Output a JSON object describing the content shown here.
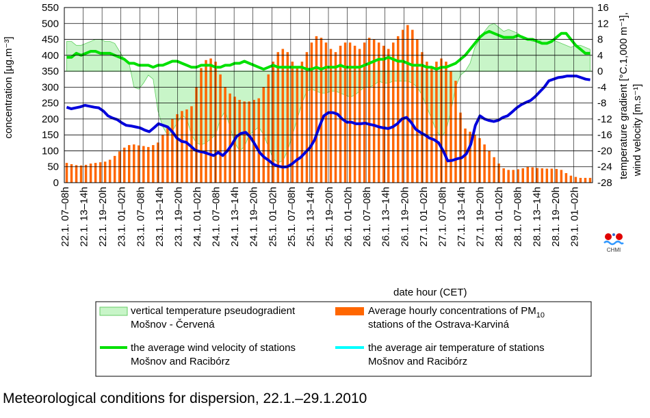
{
  "caption": "Meteorological conditions for dispersion, 22.1.–29.1.2010",
  "logo_text": "CHMI",
  "chart_data": {
    "type": "bar",
    "x_title": "date hour (CET)",
    "y_left_title": "concentration [µg.m⁻³]",
    "y_right_title_1": "temperature gradient [°C.1,000 m⁻¹],",
    "y_right_title_2": "wind velocity [m.s⁻¹]",
    "y_left": {
      "min": 0,
      "max": 550,
      "ticks": [
        "0",
        "50",
        "100",
        "150",
        "200",
        "250",
        "300",
        "350",
        "400",
        "450",
        "500",
        "550"
      ]
    },
    "y_right": {
      "min": -28,
      "max": 16,
      "ticks": [
        "-28",
        "-24",
        "-20",
        "-16",
        "-12",
        "-8",
        "-4",
        "0",
        "4",
        "8",
        "12",
        "16"
      ]
    },
    "x_ticks": [
      "22.1. 07–08h",
      "22.1. 13–14h",
      "22.1. 19–20h",
      "23.1. 01–02h",
      "23.1. 07–08h",
      "23.1. 13–14h",
      "23.1. 19–20h",
      "24.1. 01–02h",
      "24.1. 07–08h",
      "24.1. 13–14h",
      "24.1. 19–20h",
      "25.1. 01–02h",
      "25.1. 07–08h",
      "25.1. 13–14h",
      "25.1. 19–20h",
      "26.1. 01–02h",
      "26.1. 07–08h",
      "26.1. 13–14h",
      "26.1. 19–20h",
      "27.1. 01–02h",
      "27.1. 07–08h",
      "27.1. 13–14h",
      "27.1. 19–20h",
      "28.1. 01–02h",
      "28.1. 07–08h",
      "28.1. 13–14h",
      "28.1. 19–20h",
      "29.1. 01–02h"
    ],
    "legend": [
      {
        "label_1": "vertical temperature pseudogradient",
        "label_2": "Mošnov - Červená",
        "color": "#c8f5c8",
        "kind": "area"
      },
      {
        "label_1": "Average hourly concentrations of PM",
        "label_sub": "10",
        "label_2": "stations of the Ostrava-Karviná",
        "color": "#ff6600",
        "kind": "bar"
      },
      {
        "label_1": "the average wind velocity of stations",
        "label_2": "Mošnov and Racibórz",
        "color": "#00e000",
        "kind": "line"
      },
      {
        "label_1": "the average air temperature of stations",
        "label_2": "Mošnov and Racibórz",
        "color": "#00ffff",
        "kind": "line"
      }
    ],
    "pm10_concentration": [
      62,
      58,
      55,
      54,
      56,
      60,
      62,
      64,
      66,
      72,
      84,
      98,
      110,
      118,
      120,
      117,
      115,
      112,
      118,
      126,
      150,
      175,
      200,
      215,
      225,
      230,
      240,
      300,
      360,
      385,
      390,
      380,
      340,
      300,
      280,
      270,
      260,
      255,
      255,
      260,
      265,
      300,
      340,
      380,
      410,
      420,
      410,
      380,
      360,
      380,
      410,
      440,
      460,
      455,
      440,
      420,
      410,
      430,
      440,
      440,
      430,
      420,
      440,
      455,
      450,
      440,
      430,
      420,
      440,
      460,
      480,
      495,
      480,
      450,
      410,
      380,
      360,
      380,
      390,
      380,
      350,
      320,
      220,
      170,
      160,
      150,
      140,
      120,
      100,
      80,
      60,
      45,
      40,
      40,
      42,
      45,
      50,
      48,
      46,
      45,
      44,
      44,
      43,
      40,
      30,
      22,
      18,
      15,
      15,
      15
    ],
    "temperature_gradient": [
      7.5,
      7.5,
      6.5,
      6.5,
      7.0,
      7.5,
      8.0,
      8.0,
      7.5,
      7.5,
      7.0,
      5.0,
      3.0,
      2.0,
      -4.0,
      -4.5,
      -3.0,
      -1.0,
      -2.0,
      -10.0,
      -14.0,
      -16.0,
      -15.0,
      -13.0,
      -11.0,
      -12.0,
      -16.0,
      -18.0,
      -18.5,
      -18.0,
      -17.0,
      -16.0,
      -12.0,
      -10.0,
      -14.0,
      -18.0,
      -20.0,
      -19.0,
      -16.0,
      -15.0,
      -14.0,
      -16.0,
      -19.0,
      -22.0,
      -23.0,
      -22.5,
      -20.0,
      -16.0,
      -12.0,
      -8.0,
      -5.0,
      -4.5,
      -5.0,
      -5.5,
      -5.5,
      -5.0,
      -5.0,
      -5.5,
      -6.0,
      -6.5,
      -6.0,
      -5.0,
      -4.0,
      -4.0,
      -3.5,
      -2.5,
      -3.0,
      -3.0,
      -2.5,
      -2.5,
      -2.5,
      -2.5,
      -3.0,
      -4.0,
      -6.0,
      -9.0,
      -12.0,
      -15.0,
      -16.5,
      -15.0,
      -10.0,
      -4.0,
      -1.0,
      0.0,
      2.0,
      6.0,
      8.0,
      10.0,
      11.5,
      12.0,
      11.0,
      10.0,
      10.5,
      10.0,
      9.5,
      8.5,
      8.0,
      7.5,
      7.5,
      8.0,
      8.0,
      8.0,
      7.5,
      7.0,
      6.5,
      6.0,
      6.5,
      6.5,
      6.0,
      5.5
    ],
    "wind_velocity": [
      3.5,
      3.5,
      4.5,
      4.0,
      4.5,
      5.0,
      5.0,
      4.5,
      4.5,
      4.5,
      4.0,
      3.5,
      3.0,
      2.0,
      2.0,
      1.5,
      1.5,
      1.5,
      1.0,
      1.5,
      1.5,
      2.0,
      2.5,
      2.5,
      2.0,
      1.5,
      1.0,
      1.0,
      1.5,
      1.5,
      1.5,
      1.0,
      1.0,
      1.5,
      1.5,
      2.0,
      2.0,
      2.5,
      2.0,
      1.5,
      1.0,
      0.5,
      1.0,
      1.5,
      1.0,
      1.0,
      1.0,
      1.0,
      1.0,
      1.0,
      0.5,
      0.5,
      1.0,
      0.5,
      1.0,
      1.0,
      1.0,
      1.5,
      1.0,
      1.0,
      1.0,
      1.0,
      1.5,
      2.0,
      2.5,
      3.0,
      3.0,
      3.5,
      3.0,
      2.5,
      2.5,
      2.0,
      1.5,
      1.5,
      1.5,
      1.0,
      1.0,
      0.5,
      1.0,
      1.0,
      1.5,
      2.0,
      3.0,
      4.0,
      5.5,
      7.0,
      8.5,
      9.5,
      10.0,
      9.5,
      9.0,
      8.5,
      8.5,
      8.5,
      9.0,
      8.5,
      8.0,
      8.0,
      7.5,
      7.0,
      7.0,
      7.5,
      8.5,
      9.5,
      9.5,
      8.0,
      6.5,
      5.5,
      4.5,
      4.5
    ],
    "concentration_line": [
      237,
      232,
      235,
      238,
      243,
      240,
      237,
      235,
      225,
      210,
      203,
      198,
      188,
      180,
      178,
      175,
      172,
      165,
      160,
      172,
      185,
      180,
      175,
      160,
      140,
      130,
      127,
      115,
      102,
      98,
      95,
      90,
      85,
      95,
      85,
      100,
      120,
      145,
      155,
      158,
      143,
      120,
      95,
      80,
      70,
      58,
      52,
      49,
      50,
      58,
      70,
      80,
      95,
      110,
      135,
      175,
      210,
      220,
      220,
      215,
      200,
      190,
      190,
      185,
      185,
      187,
      183,
      180,
      175,
      172,
      170,
      175,
      185,
      200,
      205,
      190,
      168,
      158,
      150,
      140,
      135,
      125,
      100,
      68,
      70,
      75,
      78,
      90,
      120,
      180,
      210,
      200,
      195,
      192,
      196,
      205,
      210,
      222,
      235,
      245,
      252,
      258,
      270,
      285,
      300,
      320,
      325,
      330,
      332,
      335,
      335,
      335,
      330,
      325,
      323
    ]
  }
}
